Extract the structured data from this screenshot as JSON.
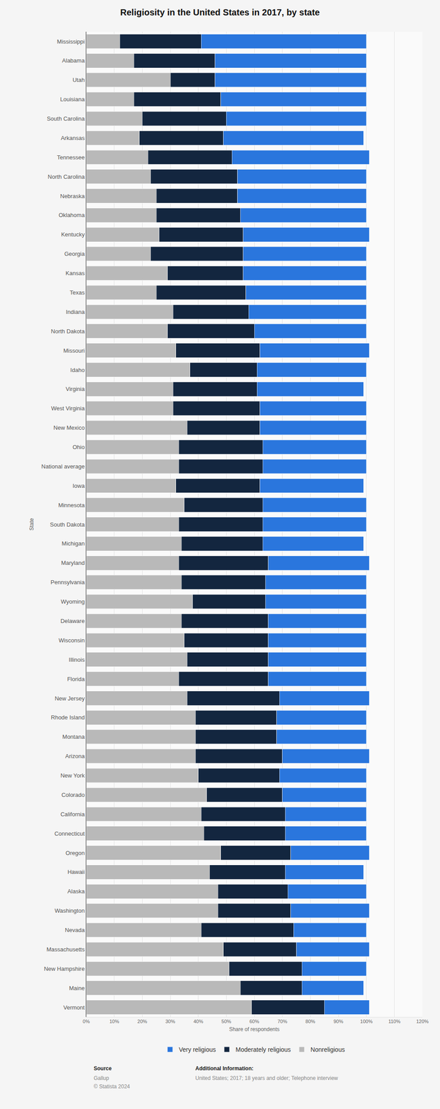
{
  "chart_data": {
    "type": "bar",
    "title": "Religiosity in the United States in 2017, by state",
    "x_label": "Share of respondents",
    "y_label": "State",
    "orientation": "horizontal",
    "stacked": true,
    "grid": true,
    "legend": "bottom",
    "categories": [
      "Mississippi",
      "Alabama",
      "Utah",
      "Louisiana",
      "South Carolina",
      "Arkansas",
      "Tennessee",
      "North Carolina",
      "Nebraska",
      "Oklahoma",
      "Kentucky",
      "Georgia",
      "Kansas",
      "Texas",
      "Indiana",
      "North Dakota",
      "Missouri",
      "Idaho",
      "Virginia",
      "West Virginia",
      "New Mexico",
      "Ohio",
      "National average",
      "Iowa",
      "Minnesota",
      "South Dakota",
      "Michigan",
      "Maryland",
      "Pennsylvania",
      "Wyoming",
      "Delaware",
      "Wisconsin",
      "Illinois",
      "Florida",
      "New Jersey",
      "Rhode Island",
      "Montana",
      "Arizona",
      "New York",
      "Colorado",
      "California",
      "Connecticut",
      "Oregon",
      "Hawaii",
      "Alaska",
      "Washington",
      "Nevada",
      "Massachusetts",
      "New Hampshire",
      "Maine",
      "Vermont"
    ],
    "series": [
      {
        "name": "Nonreligious",
        "color": "#b9b9b9",
        "values": [
          12,
          17,
          30,
          17,
          20,
          19,
          22,
          23,
          25,
          25,
          26,
          23,
          29,
          25,
          31,
          29,
          32,
          37,
          31,
          31,
          36,
          33,
          33,
          32,
          35,
          33,
          34,
          33,
          34,
          38,
          34,
          35,
          36,
          33,
          36,
          39,
          39,
          39,
          40,
          43,
          41,
          42,
          48,
          44,
          47,
          47,
          41,
          49,
          51,
          55,
          59
        ]
      },
      {
        "name": "Moderately religious",
        "color": "#13263f",
        "values": [
          29,
          29,
          16,
          31,
          30,
          30,
          30,
          31,
          29,
          30,
          30,
          33,
          27,
          32,
          27,
          31,
          30,
          24,
          30,
          31,
          26,
          30,
          30,
          30,
          28,
          30,
          29,
          32,
          30,
          26,
          31,
          30,
          29,
          32,
          33,
          29,
          29,
          31,
          29,
          27,
          30,
          29,
          25,
          27,
          25,
          26,
          33,
          26,
          26,
          22,
          26
        ]
      },
      {
        "name": "Very religious",
        "color": "#2a76dd",
        "values": [
          59,
          54,
          54,
          52,
          50,
          50,
          49,
          46,
          46,
          45,
          45,
          44,
          44,
          43,
          42,
          40,
          39,
          39,
          38,
          38,
          38,
          37,
          37,
          37,
          37,
          37,
          36,
          36,
          36,
          36,
          35,
          35,
          35,
          35,
          32,
          32,
          32,
          31,
          31,
          30,
          29,
          29,
          28,
          28,
          28,
          28,
          26,
          26,
          23,
          22,
          16
        ]
      }
    ],
    "xlim": [
      0,
      120
    ],
    "xticks": [
      {
        "value": 0,
        "label": "0%"
      },
      {
        "value": 10,
        "label": "10%"
      },
      {
        "value": 20,
        "label": "20%"
      },
      {
        "value": 30,
        "label": "30%"
      },
      {
        "value": 40,
        "label": "40%"
      },
      {
        "value": 50,
        "label": "50%"
      },
      {
        "value": 60,
        "label": "60%"
      },
      {
        "value": 70,
        "label": "70%"
      },
      {
        "value": 80,
        "label": "80%"
      },
      {
        "value": 90,
        "label": "90%"
      },
      {
        "value": 100,
        "label": "100%"
      },
      {
        "value": 110,
        "label": "110%"
      },
      {
        "value": 120,
        "label": "120%"
      }
    ],
    "annotations": [
      {
        "text": "Source",
        "bold": true
      },
      {
        "text": "Gallup"
      },
      {
        "text": "© Statista 2024"
      },
      {
        "text": "Additional Information:",
        "bold": true
      },
      {
        "text": "United States; 2017; 18 years and older; Telephone interview"
      }
    ]
  }
}
